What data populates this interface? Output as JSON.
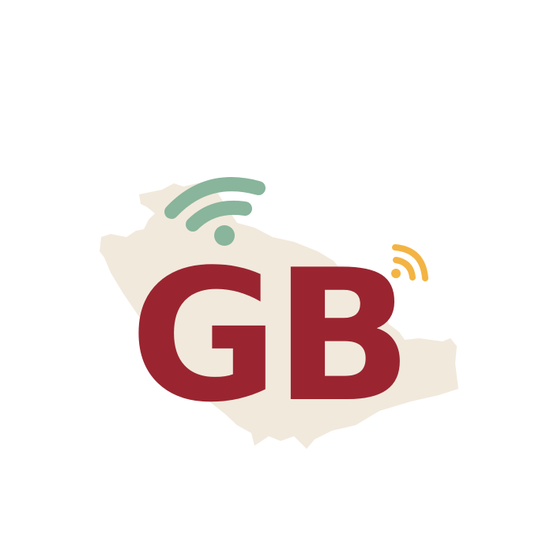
{
  "logo": {
    "text": "GB",
    "colors": {
      "background": "#ffffff",
      "map": "#f1e9dc",
      "letters": "#9a2530",
      "letters_shade": "#a8313a",
      "wifi_green": "#88b59b",
      "wifi_orange": "#f3b444"
    },
    "icons": [
      "map-silhouette",
      "wifi-signal-icon",
      "rss-signal-icon"
    ]
  }
}
